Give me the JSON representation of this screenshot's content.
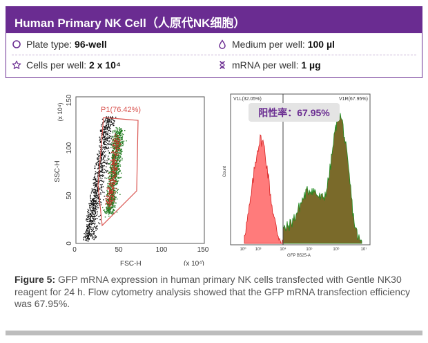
{
  "header": {
    "title": "Human Primary NK Cell（人原代NK细胞）"
  },
  "info": {
    "plate_label": "Plate type: ",
    "plate_value": "96-well",
    "medium_label": "Medium per well: ",
    "medium_value": "100 µl",
    "cells_label": "Cells per well: ",
    "cells_value": "2 x 10⁴",
    "mrna_label": "mRNA per well: ",
    "mrna_value": "1 µg",
    "icons": [
      "circle-icon",
      "droplet-icon",
      "star-icon",
      "dna-icon"
    ],
    "accent": "#6a2c91"
  },
  "scatter_plot": {
    "gate_label": "P1(76.42%)",
    "xlabel": "FSC-H",
    "ylabel": "SSC-H",
    "x_multiplier": "(x 10⁴)",
    "y_multiplier": "(x 10⁴)",
    "x_ticks": [
      "0",
      "50",
      "100",
      "150"
    ],
    "y_ticks": [
      "0",
      "50",
      "100",
      "150"
    ]
  },
  "histogram": {
    "left_gate": "V1L(32.05%)",
    "right_gate": "V1R(67.95%)",
    "positive_rate": "阳性率：67.95%",
    "xlabel": "GFP B525-A",
    "ylabel": "Count",
    "x_ticks": [
      "10⁰",
      "10³",
      "10⁴",
      "10⁵",
      "10⁶",
      "10⁷"
    ]
  },
  "caption": {
    "label": "Figure 5:",
    "text": " GFP mRNA expression in human primary NK cells transfected with Gentle NK30 reagent for 24 h. Flow cytometry analysis showed that the GFP mRNA transfection efficiency was 67.95%."
  },
  "chart_data": [
    {
      "type": "scatter",
      "xlabel": "FSC-H",
      "ylabel": "SSC-H",
      "xlim": [
        0,
        150
      ],
      "ylim": [
        0,
        150
      ],
      "gate": {
        "name": "P1",
        "percent": 76.42
      },
      "colors": {
        "ungated": "#111111",
        "gated_1": "#1e7a1e",
        "gated_2": "#c0392b",
        "gate_line": "#d9534f"
      }
    },
    {
      "type": "area",
      "xlabel": "GFP B525-A",
      "ylabel": "Count",
      "x_scale": "log",
      "regions": [
        {
          "name": "V1L",
          "percent": 32.05,
          "color": "#ff7b7b"
        },
        {
          "name": "V1R",
          "percent": 67.95,
          "color": "#7a6a2a"
        }
      ],
      "positive_rate_percent": 67.95
    }
  ]
}
